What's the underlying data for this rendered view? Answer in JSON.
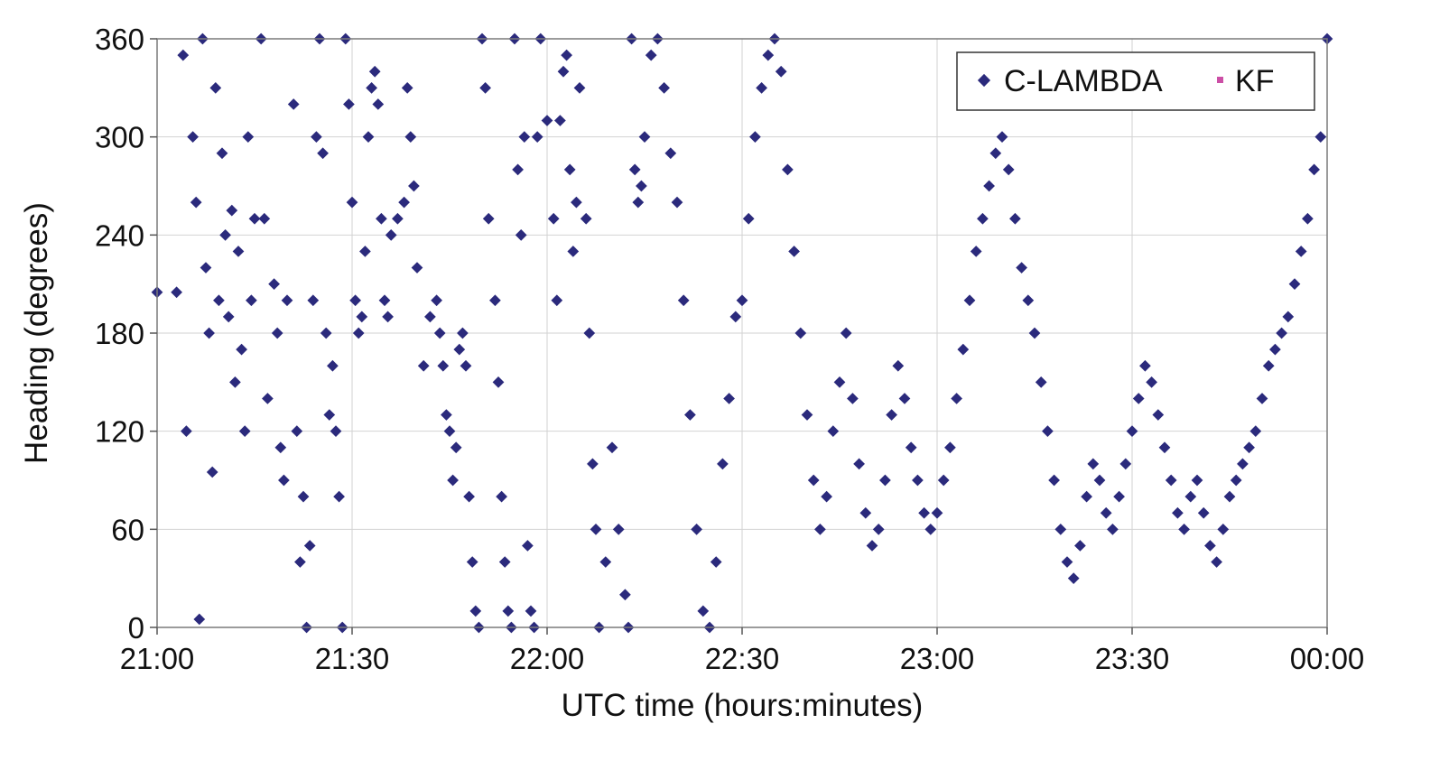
{
  "chart_data": {
    "type": "scatter",
    "xlabel": "UTC time (hours:minutes)",
    "ylabel": "Heading (degrees)",
    "xlim_minutes": [
      0,
      180
    ],
    "ylim": [
      0,
      360
    ],
    "x_ticks": [
      {
        "value": 0,
        "label": "21:00"
      },
      {
        "value": 30,
        "label": "21:30"
      },
      {
        "value": 60,
        "label": "22:00"
      },
      {
        "value": 90,
        "label": "22:30"
      },
      {
        "value": 120,
        "label": "23:00"
      },
      {
        "value": 150,
        "label": "23:30"
      },
      {
        "value": 180,
        "label": "00:00"
      }
    ],
    "y_ticks": [
      {
        "value": 0,
        "label": "0"
      },
      {
        "value": 60,
        "label": "60"
      },
      {
        "value": 120,
        "label": "120"
      },
      {
        "value": 180,
        "label": "180"
      },
      {
        "value": 240,
        "label": "240"
      },
      {
        "value": 300,
        "label": "300"
      },
      {
        "value": 360,
        "label": "360"
      }
    ],
    "grid": true,
    "legend_position": "top-right",
    "series": [
      {
        "name": "C-LAMBDA",
        "color": "#2b2a7c",
        "marker": "diamond"
      },
      {
        "name": "KF",
        "color": "#cc4fa6",
        "marker": "square"
      }
    ],
    "points": [
      [
        0.0,
        205
      ],
      [
        3.0,
        205
      ],
      [
        4.0,
        350
      ],
      [
        4.5,
        120
      ],
      [
        5.5,
        300
      ],
      [
        6.0,
        260
      ],
      [
        6.5,
        5
      ],
      [
        7.0,
        360
      ],
      [
        7.5,
        220
      ],
      [
        8.0,
        180
      ],
      [
        8.5,
        95
      ],
      [
        9.0,
        330
      ],
      [
        9.5,
        200
      ],
      [
        10.0,
        290
      ],
      [
        10.5,
        240
      ],
      [
        11.0,
        190
      ],
      [
        11.5,
        255
      ],
      [
        12.0,
        150
      ],
      [
        12.5,
        230
      ],
      [
        13.0,
        170
      ],
      [
        13.5,
        120
      ],
      [
        14.0,
        300
      ],
      [
        14.5,
        200
      ],
      [
        15.0,
        250
      ],
      [
        16.0,
        360
      ],
      [
        16.5,
        250
      ],
      [
        17.0,
        140
      ],
      [
        18.0,
        210
      ],
      [
        18.5,
        180
      ],
      [
        19.0,
        110
      ],
      [
        19.5,
        90
      ],
      [
        20.0,
        200
      ],
      [
        21.0,
        320
      ],
      [
        21.5,
        120
      ],
      [
        22.0,
        40
      ],
      [
        22.5,
        80
      ],
      [
        23.0,
        0
      ],
      [
        23.5,
        50
      ],
      [
        24.0,
        200
      ],
      [
        24.5,
        300
      ],
      [
        25.0,
        360
      ],
      [
        25.5,
        290
      ],
      [
        26.0,
        180
      ],
      [
        26.5,
        130
      ],
      [
        27.0,
        160
      ],
      [
        27.5,
        120
      ],
      [
        28.0,
        80
      ],
      [
        28.5,
        0
      ],
      [
        29.0,
        360
      ],
      [
        29.5,
        320
      ],
      [
        30.0,
        260
      ],
      [
        30.5,
        200
      ],
      [
        31.0,
        180
      ],
      [
        31.5,
        190
      ],
      [
        32.0,
        230
      ],
      [
        32.5,
        300
      ],
      [
        33.0,
        330
      ],
      [
        33.5,
        340
      ],
      [
        34.0,
        320
      ],
      [
        34.5,
        250
      ],
      [
        35.0,
        200
      ],
      [
        35.5,
        190
      ],
      [
        36.0,
        240
      ],
      [
        37.0,
        250
      ],
      [
        38.0,
        260
      ],
      [
        38.5,
        330
      ],
      [
        39.0,
        300
      ],
      [
        39.5,
        270
      ],
      [
        40.0,
        220
      ],
      [
        41.0,
        160
      ],
      [
        42.0,
        190
      ],
      [
        43.0,
        200
      ],
      [
        43.5,
        180
      ],
      [
        44.0,
        160
      ],
      [
        44.5,
        130
      ],
      [
        45.0,
        120
      ],
      [
        45.5,
        90
      ],
      [
        46.0,
        110
      ],
      [
        46.5,
        170
      ],
      [
        47.0,
        180
      ],
      [
        47.5,
        160
      ],
      [
        48.0,
        80
      ],
      [
        48.5,
        40
      ],
      [
        49.0,
        10
      ],
      [
        49.5,
        0
      ],
      [
        50.0,
        360
      ],
      [
        50.5,
        330
      ],
      [
        51.0,
        250
      ],
      [
        52.0,
        200
      ],
      [
        52.5,
        150
      ],
      [
        53.0,
        80
      ],
      [
        53.5,
        40
      ],
      [
        54.0,
        10
      ],
      [
        54.5,
        0
      ],
      [
        55.0,
        360
      ],
      [
        55.5,
        280
      ],
      [
        56.0,
        240
      ],
      [
        56.5,
        300
      ],
      [
        57.0,
        50
      ],
      [
        57.5,
        10
      ],
      [
        58.0,
        0
      ],
      [
        58.5,
        300
      ],
      [
        59.0,
        360
      ],
      [
        60.0,
        310
      ],
      [
        61.0,
        250
      ],
      [
        61.5,
        200
      ],
      [
        62.0,
        310
      ],
      [
        62.5,
        340
      ],
      [
        63.0,
        350
      ],
      [
        63.5,
        280
      ],
      [
        64.0,
        230
      ],
      [
        64.5,
        260
      ],
      [
        65.0,
        330
      ],
      [
        66.0,
        250
      ],
      [
        66.5,
        180
      ],
      [
        67.0,
        100
      ],
      [
        67.5,
        60
      ],
      [
        68.0,
        0
      ],
      [
        69.0,
        40
      ],
      [
        70.0,
        110
      ],
      [
        71.0,
        60
      ],
      [
        72.0,
        20
      ],
      [
        72.5,
        0
      ],
      [
        73.0,
        360
      ],
      [
        73.5,
        280
      ],
      [
        74.0,
        260
      ],
      [
        74.5,
        270
      ],
      [
        75.0,
        300
      ],
      [
        76.0,
        350
      ],
      [
        77.0,
        360
      ],
      [
        78.0,
        330
      ],
      [
        79.0,
        290
      ],
      [
        80.0,
        260
      ],
      [
        81.0,
        200
      ],
      [
        82.0,
        130
      ],
      [
        83.0,
        60
      ],
      [
        84.0,
        10
      ],
      [
        85.0,
        0
      ],
      [
        86.0,
        40
      ],
      [
        87.0,
        100
      ],
      [
        88.0,
        140
      ],
      [
        89.0,
        190
      ],
      [
        90.0,
        200
      ],
      [
        91.0,
        250
      ],
      [
        92.0,
        300
      ],
      [
        93.0,
        330
      ],
      [
        94.0,
        350
      ],
      [
        95.0,
        360
      ],
      [
        96.0,
        340
      ],
      [
        97.0,
        280
      ],
      [
        98.0,
        230
      ],
      [
        99.0,
        180
      ],
      [
        100.0,
        130
      ],
      [
        101.0,
        90
      ],
      [
        102.0,
        60
      ],
      [
        103.0,
        80
      ],
      [
        104.0,
        120
      ],
      [
        105.0,
        150
      ],
      [
        106.0,
        180
      ],
      [
        107.0,
        140
      ],
      [
        108.0,
        100
      ],
      [
        109.0,
        70
      ],
      [
        110.0,
        50
      ],
      [
        111.0,
        60
      ],
      [
        112.0,
        90
      ],
      [
        113.0,
        130
      ],
      [
        114.0,
        160
      ],
      [
        115.0,
        140
      ],
      [
        116.0,
        110
      ],
      [
        117.0,
        90
      ],
      [
        118.0,
        70
      ],
      [
        119.0,
        60
      ],
      [
        120.0,
        70
      ],
      [
        121.0,
        90
      ],
      [
        122.0,
        110
      ],
      [
        123.0,
        140
      ],
      [
        124.0,
        170
      ],
      [
        125.0,
        200
      ],
      [
        126.0,
        230
      ],
      [
        127.0,
        250
      ],
      [
        128.0,
        270
      ],
      [
        129.0,
        290
      ],
      [
        130.0,
        300
      ],
      [
        131.0,
        280
      ],
      [
        132.0,
        250
      ],
      [
        133.0,
        220
      ],
      [
        134.0,
        200
      ],
      [
        135.0,
        180
      ],
      [
        136.0,
        150
      ],
      [
        137.0,
        120
      ],
      [
        138.0,
        90
      ],
      [
        139.0,
        60
      ],
      [
        140.0,
        40
      ],
      [
        141.0,
        30
      ],
      [
        142.0,
        50
      ],
      [
        143.0,
        80
      ],
      [
        144.0,
        100
      ],
      [
        145.0,
        90
      ],
      [
        146.0,
        70
      ],
      [
        147.0,
        60
      ],
      [
        148.0,
        80
      ],
      [
        149.0,
        100
      ],
      [
        150.0,
        120
      ],
      [
        151.0,
        140
      ],
      [
        152.0,
        160
      ],
      [
        153.0,
        150
      ],
      [
        154.0,
        130
      ],
      [
        155.0,
        110
      ],
      [
        156.0,
        90
      ],
      [
        157.0,
        70
      ],
      [
        158.0,
        60
      ],
      [
        159.0,
        80
      ],
      [
        160.0,
        90
      ],
      [
        161.0,
        70
      ],
      [
        162.0,
        50
      ],
      [
        163.0,
        40
      ],
      [
        164.0,
        60
      ],
      [
        165.0,
        80
      ],
      [
        166.0,
        90
      ],
      [
        167.0,
        100
      ],
      [
        168.0,
        110
      ],
      [
        169.0,
        120
      ],
      [
        170.0,
        140
      ],
      [
        171.0,
        160
      ],
      [
        172.0,
        170
      ],
      [
        173.0,
        180
      ],
      [
        174.0,
        190
      ],
      [
        175.0,
        210
      ],
      [
        176.0,
        230
      ],
      [
        177.0,
        250
      ],
      [
        178.0,
        280
      ],
      [
        179.0,
        300
      ],
      [
        180.0,
        360
      ]
    ]
  }
}
